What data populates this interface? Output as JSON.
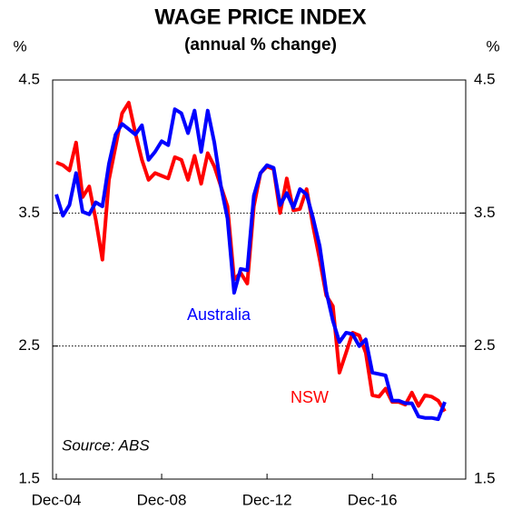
{
  "chart_data": {
    "type": "line",
    "title": "WAGE PRICE INDEX",
    "subtitle": "(annual % change)",
    "y_label": "%",
    "y2_label": "%",
    "source": "Source: ABS",
    "categories": [
      "Dec-04",
      null,
      null,
      null,
      null,
      null,
      null,
      null,
      null,
      null,
      null,
      null,
      null,
      null,
      null,
      null,
      "Dec-08",
      null,
      null,
      null,
      null,
      null,
      null,
      null,
      null,
      null,
      null,
      null,
      null,
      null,
      null,
      null,
      "Dec-12",
      null,
      null,
      null,
      null,
      null,
      null,
      null,
      null,
      null,
      null,
      null,
      null,
      null,
      null,
      null,
      "Dec-16",
      null,
      null,
      null,
      null,
      null,
      null,
      null,
      null,
      null,
      null,
      null
    ],
    "series": [
      {
        "name": "NSW",
        "color": "#ff0000",
        "values": [
          3.88,
          3.86,
          3.82,
          4.03,
          3.62,
          3.7,
          3.45,
          3.15,
          3.75,
          4.0,
          4.25,
          4.33,
          4.1,
          3.9,
          3.75,
          3.8,
          3.78,
          3.76,
          3.92,
          3.9,
          3.75,
          3.93,
          3.72,
          3.95,
          3.85,
          3.7,
          3.55,
          3.0,
          3.05,
          2.97,
          3.55,
          3.8,
          3.85,
          3.83,
          3.5,
          3.76,
          3.52,
          3.53,
          3.68,
          3.4,
          3.15,
          2.88,
          2.8,
          2.3,
          2.45,
          2.6,
          2.58,
          2.45,
          2.13,
          2.12,
          2.18,
          2.08,
          2.08,
          2.06,
          2.15,
          2.05,
          2.13,
          2.12,
          2.09,
          2.01
        ]
      },
      {
        "name": "Australia",
        "color": "#0000ff",
        "values": [
          3.64,
          3.48,
          3.56,
          3.8,
          3.51,
          3.49,
          3.58,
          3.55,
          3.87,
          4.09,
          4.17,
          4.13,
          4.09,
          4.16,
          3.9,
          3.96,
          4.04,
          4.01,
          4.28,
          4.25,
          4.1,
          4.27,
          3.96,
          4.27,
          4.03,
          3.7,
          3.46,
          2.9,
          3.08,
          3.07,
          3.63,
          3.8,
          3.86,
          3.84,
          3.56,
          3.65,
          3.54,
          3.68,
          3.64,
          3.46,
          3.25,
          2.91,
          2.69,
          2.53,
          2.6,
          2.59,
          2.5,
          2.55,
          2.3,
          2.29,
          2.28,
          2.09,
          2.09,
          2.07,
          2.07,
          1.97,
          1.96,
          1.96,
          1.95,
          2.08
        ]
      }
    ],
    "ylim": [
      1.5,
      4.5
    ],
    "yticks": [
      1.5,
      2.5,
      3.5,
      4.5
    ],
    "y2lim": [
      1.5,
      4.5
    ],
    "y2ticks": [
      1.5,
      2.5,
      3.5,
      4.5
    ],
    "grid": true
  }
}
